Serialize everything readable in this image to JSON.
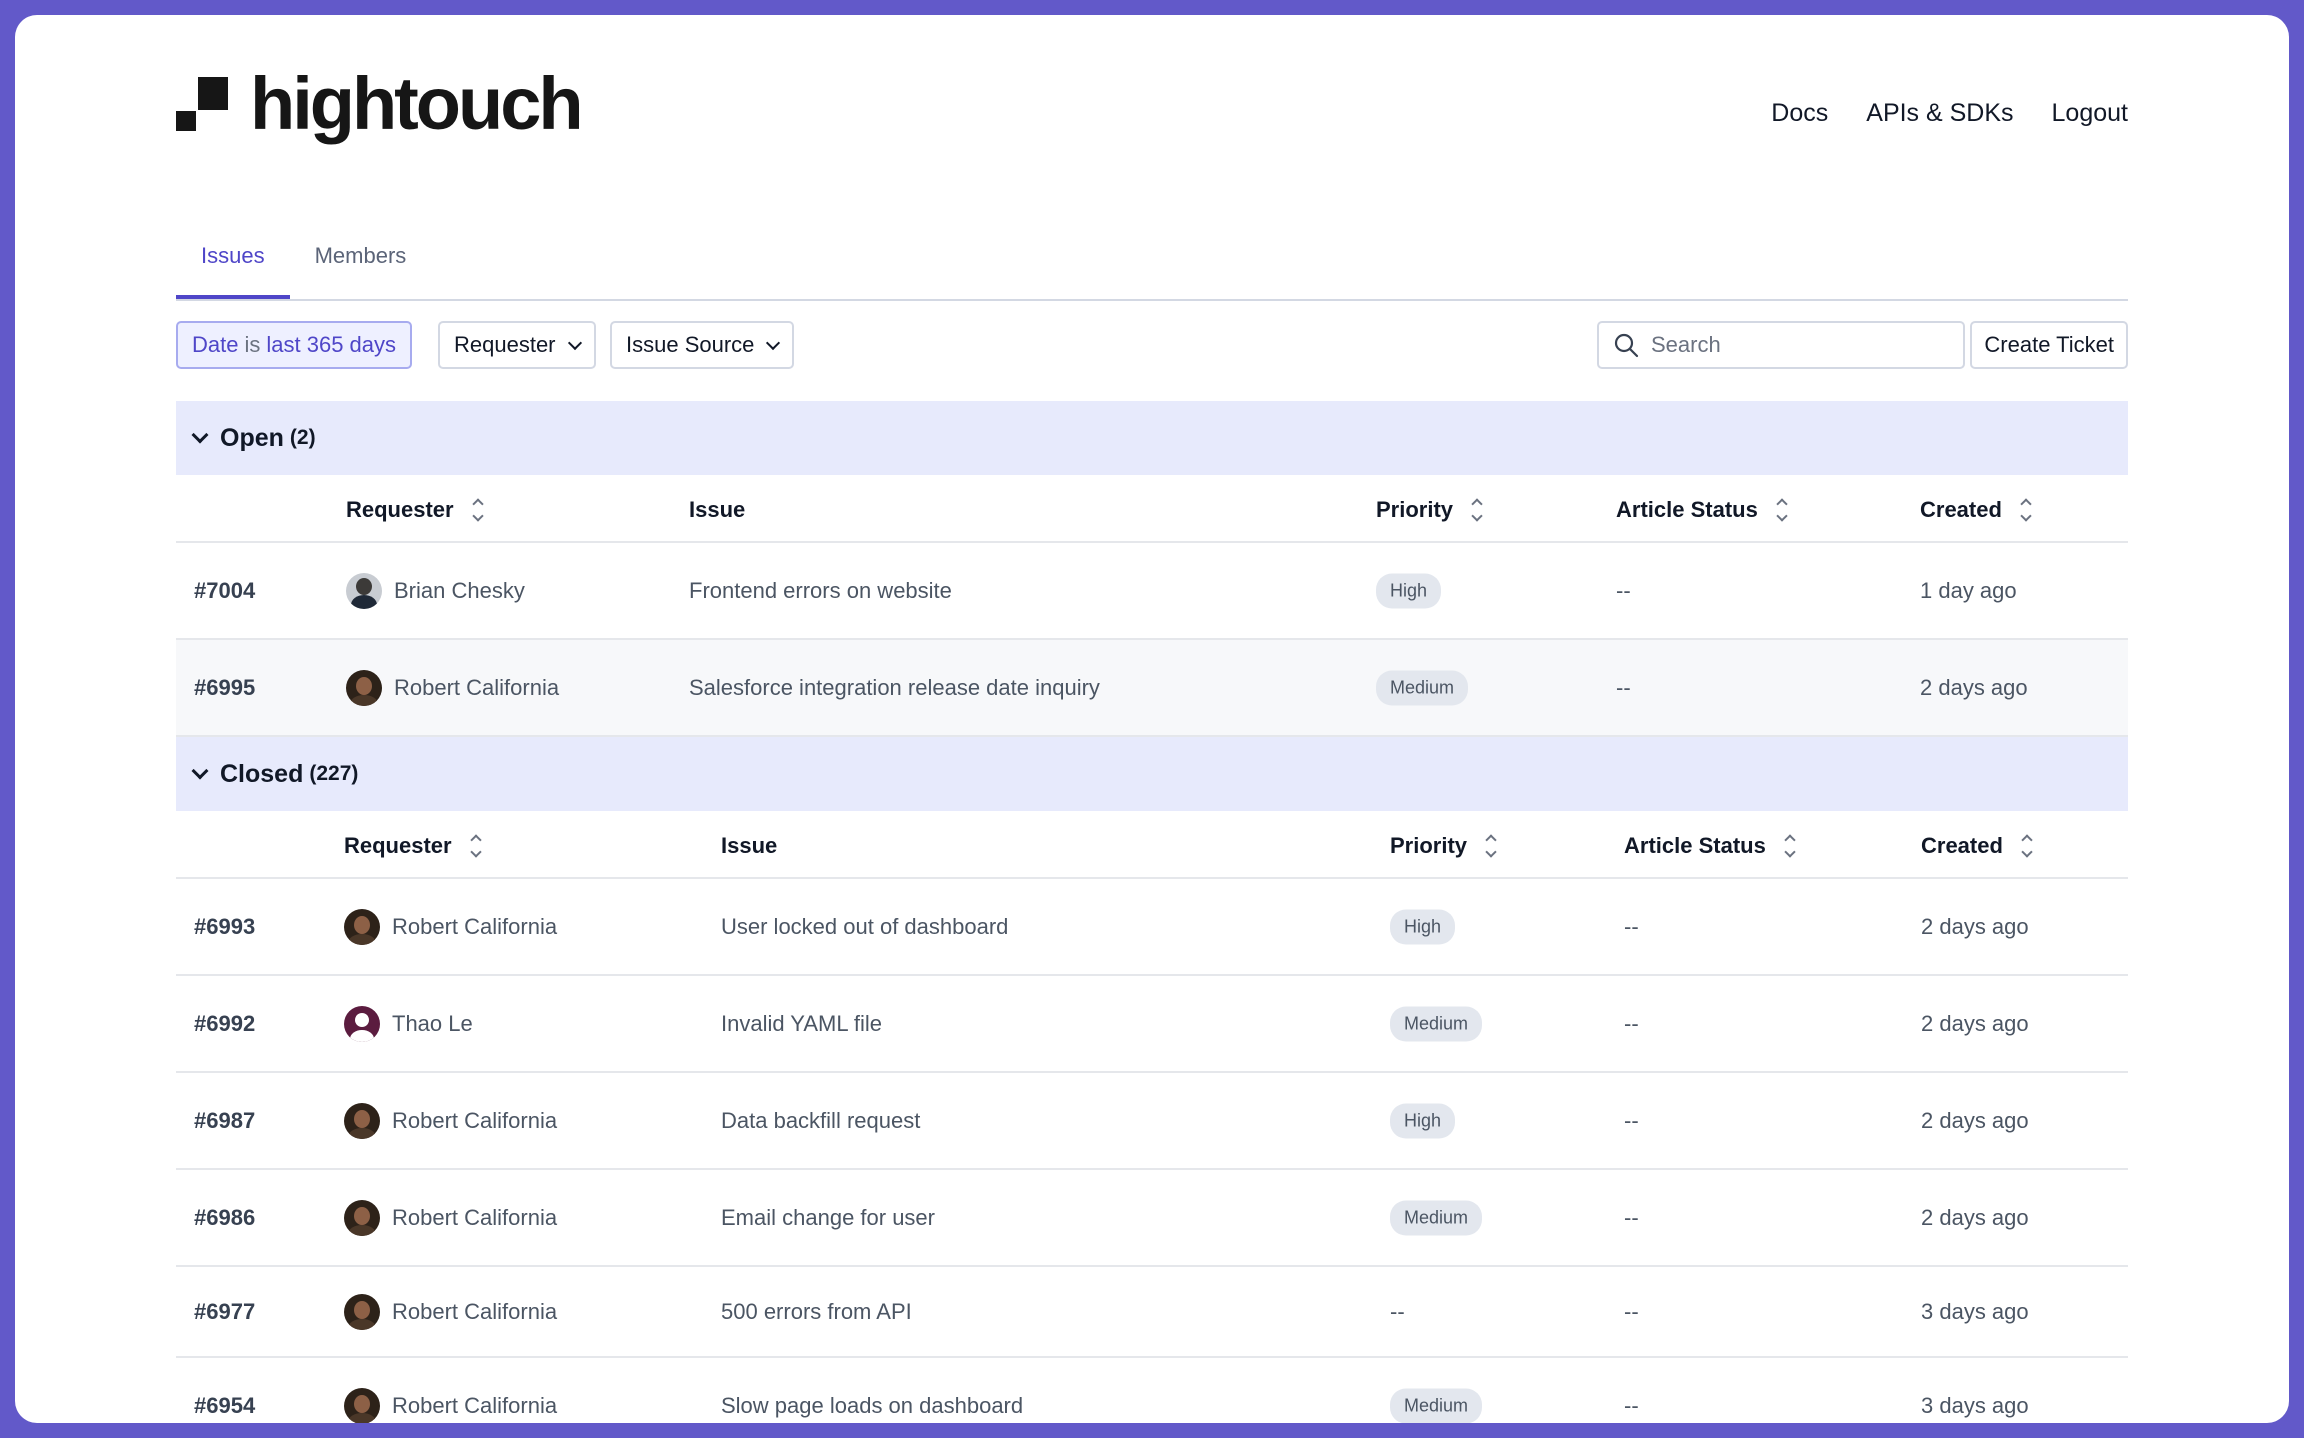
{
  "brand": {
    "name": "hightouch"
  },
  "nav": {
    "docs": "Docs",
    "apis": "APIs & SDKs",
    "logout": "Logout"
  },
  "tabs": [
    {
      "label": "Issues",
      "active": true
    },
    {
      "label": "Members",
      "active": false
    }
  ],
  "filters": {
    "date_prefix": "Date",
    "date_is": "is",
    "date_value": "last 365 days",
    "requester": "Requester",
    "issue_source": "Issue Source"
  },
  "search": {
    "placeholder": "Search"
  },
  "create_ticket": "Create Ticket",
  "columns": {
    "requester": "Requester",
    "issue": "Issue",
    "priority": "Priority",
    "article_status": "Article Status",
    "created": "Created"
  },
  "groups": [
    {
      "title": "Open",
      "count": "(2)",
      "rows": [
        {
          "id": "#7004",
          "requester": "Brian Chesky",
          "avatar": "brian",
          "issue": "Frontend errors on website",
          "priority": "High",
          "article_status": "--",
          "created": "1 day ago"
        },
        {
          "id": "#6995",
          "requester": "Robert California",
          "avatar": "robert",
          "issue": "Salesforce integration release date inquiry",
          "priority": "Medium",
          "article_status": "--",
          "created": "2 days ago"
        }
      ]
    },
    {
      "title": "Closed",
      "count": "(227)",
      "rows": [
        {
          "id": "#6993",
          "requester": "Robert California",
          "avatar": "robert",
          "issue": "User locked out of dashboard",
          "priority": "High",
          "article_status": "--",
          "created": "2 days ago"
        },
        {
          "id": "#6992",
          "requester": "Thao Le",
          "avatar": "thao",
          "issue": "Invalid YAML file",
          "priority": "Medium",
          "article_status": "--",
          "created": "2 days ago"
        },
        {
          "id": "#6987",
          "requester": "Robert California",
          "avatar": "robert",
          "issue": "Data backfill request",
          "priority": "High",
          "article_status": "--",
          "created": "2 days ago"
        },
        {
          "id": "#6986",
          "requester": "Robert California",
          "avatar": "robert",
          "issue": "Email change for user",
          "priority": "Medium",
          "article_status": "--",
          "created": "2 days ago"
        },
        {
          "id": "#6977",
          "requester": "Robert California",
          "avatar": "robert",
          "issue": "500 errors from API",
          "priority": "--",
          "article_status": "--",
          "created": "3 days ago"
        },
        {
          "id": "#6954",
          "requester": "Robert California",
          "avatar": "robert",
          "issue": "Slow page loads on dashboard",
          "priority": "Medium",
          "article_status": "--",
          "created": "3 days ago"
        }
      ]
    }
  ],
  "colors": {
    "accent": "#4f46c8",
    "frame": "#6259c9",
    "group_header_bg": "#e7eafc"
  }
}
